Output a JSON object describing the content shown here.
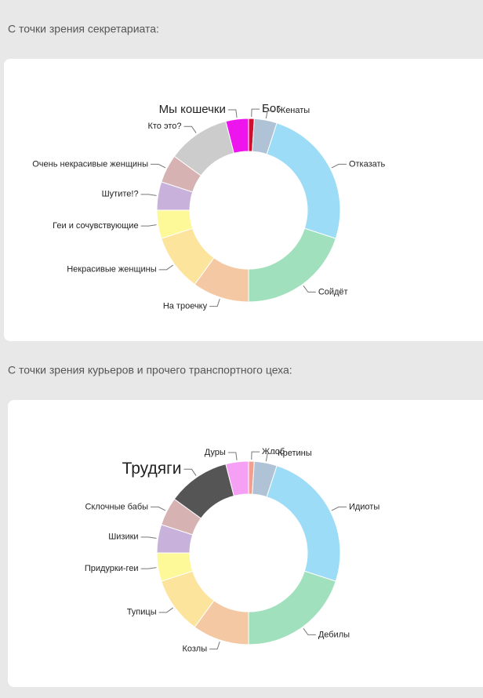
{
  "chart_data": [
    {
      "type": "donut",
      "title": "С точки зрения секретариата:",
      "categories": [
        "Бог",
        "Женаты",
        "Отказать",
        "Сойдёт",
        "На троечку",
        "Некрасивые женщины",
        "Геи и сочувствующие",
        "Шутите!?",
        "Очень некрасивые женщины",
        "Кто это?",
        "Мы кошечки"
      ],
      "values": [
        1,
        4,
        25,
        20,
        10,
        10,
        5,
        5,
        5,
        11,
        4
      ],
      "colors": [
        "#cc1030",
        "#b0c2d6",
        "#9cdcf6",
        "#a0e0bc",
        "#f4c8a2",
        "#fde49c",
        "#fdf898",
        "#c8b2dc",
        "#d6b2b2",
        "#cccccc",
        "#ee14ee"
      ]
    },
    {
      "type": "donut",
      "title": "С точки зрения курьеров и прочего транспортного цеха:",
      "categories": [
        "Жлоб",
        "Кретины",
        "Идиоты",
        "Дебилы",
        "Козлы",
        "Тупицы",
        "Придурки-геи",
        "Шизики",
        "Склочные бабы",
        "Трудяги",
        "Дуры"
      ],
      "values": [
        1,
        4,
        25,
        20,
        10,
        10,
        5,
        5,
        5,
        11,
        4
      ],
      "colors": [
        "#f0a090",
        "#b0c2d6",
        "#9cdcf6",
        "#a0e0bc",
        "#f4c8a2",
        "#fde49c",
        "#fdf898",
        "#c8b2dc",
        "#d6b2b2",
        "#555555",
        "#f5a0f5"
      ]
    }
  ]
}
